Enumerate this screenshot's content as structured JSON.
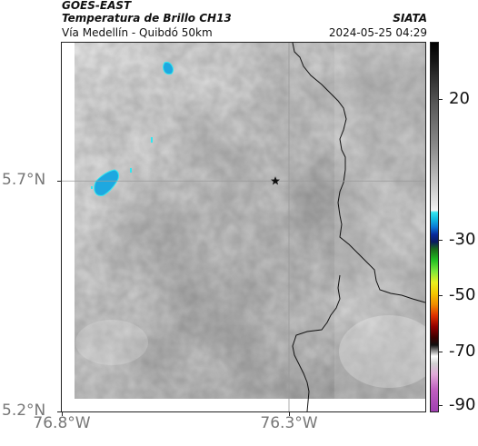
{
  "header": {
    "title": "GOES-EAST",
    "subtitle": "Temperatura de Brillo CH13",
    "organization": "SIATA",
    "region": "Vía Medellín - Quibdó 50km",
    "datetime": "2024-05-25 04:29"
  },
  "map": {
    "lon_range": [
      -76.8,
      -76.0
    ],
    "lat_range": [
      5.2,
      6.0
    ],
    "gridline_lon": -76.3,
    "gridline_lat": 5.7,
    "marker": {
      "type": "star",
      "lon": -76.33,
      "lat": 5.7
    },
    "x_ticks": [
      {
        "value": -76.8,
        "label": "76.8°W"
      },
      {
        "value": -76.3,
        "label": "76.3°W"
      }
    ],
    "y_ticks": [
      {
        "value": 5.7,
        "label": "5.7°N"
      },
      {
        "value": 5.2,
        "label": "5.2°N"
      }
    ]
  },
  "colorbar": {
    "ticks": [
      {
        "value": 20,
        "label": "20"
      },
      {
        "value": -30,
        "label": "-30"
      },
      {
        "value": -50,
        "label": "-50"
      },
      {
        "value": -70,
        "label": "-70"
      },
      {
        "value": -90,
        "label": "-90"
      }
    ]
  },
  "colors": {
    "cold_cloud": "#1ea8e0",
    "boundary": "#111111",
    "gridline": "#9a9a9a"
  }
}
